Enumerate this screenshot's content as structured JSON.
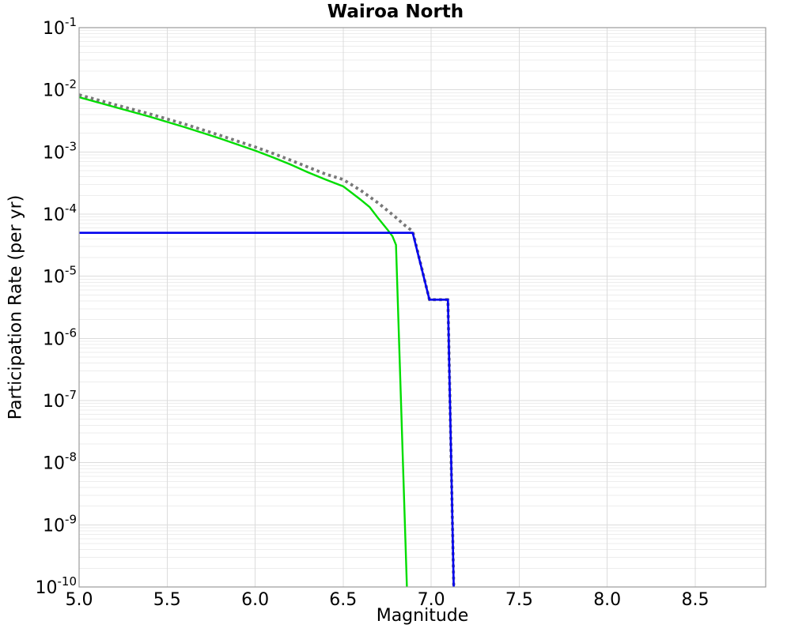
{
  "chart_data": {
    "type": "line",
    "title": "Wairoa North",
    "xlabel": "Magnitude",
    "ylabel": "Participation Rate (per yr)",
    "xlim": [
      5.0,
      8.9
    ],
    "ylim_exp": [
      -10,
      -1
    ],
    "x_ticks": [
      5.0,
      5.5,
      6.0,
      6.5,
      7.0,
      7.5,
      8.0,
      8.5
    ],
    "x_tick_labels": [
      "5.0",
      "5.5",
      "6.0",
      "6.5",
      "7.0",
      "7.5",
      "8.0",
      "8.5"
    ],
    "y_tick_base": "10",
    "y_tick_exponents": [
      "-1",
      "-2",
      "-3",
      "-4",
      "-5",
      "-6",
      "-7",
      "-8",
      "-9",
      "-10"
    ],
    "grid": true,
    "legend": "none",
    "series": [
      {
        "name": "gr-taper-branch",
        "color": "#00dd00",
        "style": "solid",
        "width": 2.4,
        "points": [
          [
            5.0,
            0.0076
          ],
          [
            5.2,
            0.0053
          ],
          [
            5.4,
            0.0037
          ],
          [
            5.6,
            0.0025
          ],
          [
            5.8,
            0.00165
          ],
          [
            6.0,
            0.00105
          ],
          [
            6.1,
            0.00082
          ],
          [
            6.2,
            0.00063
          ],
          [
            6.3,
            0.00047
          ],
          [
            6.4,
            0.00036
          ],
          [
            6.5,
            0.00028
          ],
          [
            6.6,
            0.00017
          ],
          [
            6.65,
            0.00013
          ],
          [
            6.7,
            8.5e-05
          ],
          [
            6.75,
            5.7e-05
          ],
          [
            6.78,
            4.4e-05
          ],
          [
            6.8,
            3.2e-05
          ],
          [
            6.82,
            5.4e-07
          ],
          [
            6.84,
            9e-09
          ],
          [
            6.862,
            1e-10
          ]
        ]
      },
      {
        "name": "total-rate-dotted",
        "color": "#787878",
        "style": "dotted",
        "width": 3.8,
        "points": [
          [
            5.0,
            0.0083
          ],
          [
            5.2,
            0.0058
          ],
          [
            5.4,
            0.0041
          ],
          [
            5.6,
            0.0028
          ],
          [
            5.8,
            0.00185
          ],
          [
            6.0,
            0.0012
          ],
          [
            6.1,
            0.00095
          ],
          [
            6.2,
            0.00074
          ],
          [
            6.3,
            0.00057
          ],
          [
            6.4,
            0.00044
          ],
          [
            6.5,
            0.00036
          ],
          [
            6.6,
            0.00024
          ],
          [
            6.7,
            0.00015
          ],
          [
            6.75,
            0.000115
          ],
          [
            6.8,
            8.8e-05
          ],
          [
            6.85,
            6.6e-05
          ],
          [
            6.895,
            5.3e-05
          ],
          [
            6.99,
            4.2e-06
          ],
          [
            7.095,
            4.2e-06
          ],
          [
            7.11,
            3.3e-08
          ],
          [
            7.12,
            1.3e-09
          ],
          [
            7.128,
            1e-10
          ]
        ]
      },
      {
        "name": "characteristic-branch",
        "color": "#0000ee",
        "style": "solid",
        "width": 2.6,
        "points": [
          [
            5.0,
            5e-05
          ],
          [
            6.895,
            5e-05
          ],
          [
            6.99,
            4.2e-06
          ],
          [
            7.095,
            4.2e-06
          ],
          [
            7.11,
            3.3e-08
          ],
          [
            7.12,
            1.3e-09
          ],
          [
            7.128,
            1e-10
          ]
        ]
      }
    ]
  }
}
